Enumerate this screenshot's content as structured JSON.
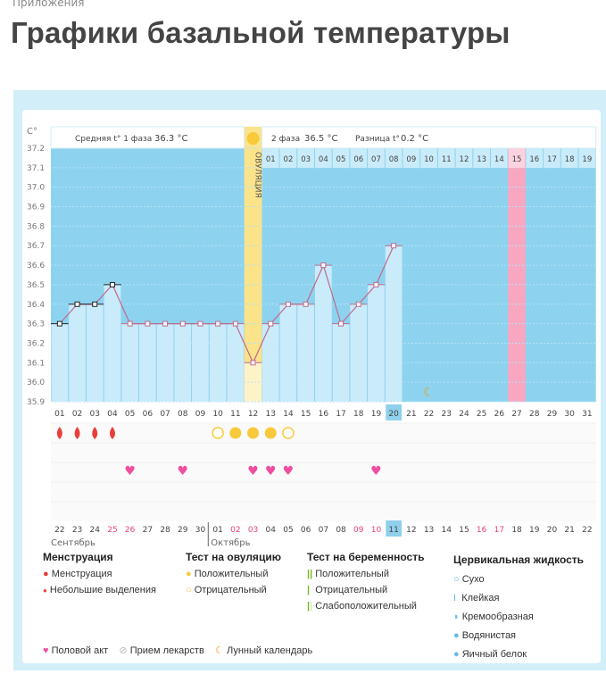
{
  "breadcrumb": "Приложения",
  "title": "Графики базальной температуры",
  "chart_data": {
    "type": "line",
    "ylabel": "C°",
    "ylim": [
      35.9,
      37.2
    ],
    "yticks": [
      "37.2",
      "37.1",
      "37.0",
      "36.9",
      "36.8",
      "36.7",
      "36.6",
      "36.5",
      "36.4",
      "36.3",
      "36.2",
      "36.1",
      "36.0",
      "35.9"
    ],
    "cycle_days": [
      "01",
      "02",
      "03",
      "04",
      "05",
      "06",
      "07",
      "08",
      "09",
      "10",
      "11",
      "12",
      "13",
      "14",
      "15",
      "16",
      "17",
      "18",
      "19",
      "20",
      "21",
      "22",
      "23",
      "24",
      "25",
      "26",
      "27",
      "28",
      "29",
      "30",
      "31"
    ],
    "temperatures": [
      36.3,
      36.4,
      36.4,
      36.5,
      36.3,
      36.3,
      36.3,
      36.3,
      36.3,
      36.3,
      36.3,
      36.1,
      36.3,
      36.4,
      36.4,
      36.6,
      36.3,
      36.4,
      36.5,
      36.7
    ],
    "today_day": 20,
    "ovulation_day": 12,
    "ovulation_label": "ОВУЛЯЦИЯ",
    "expected_period_day": 27,
    "moon_day": 22,
    "phase1_label": "Средняя t° 1 фаза",
    "phase1_value": "36.3 °C",
    "phase2_label": "2 фаза",
    "phase2_value": "36.5 °C",
    "diff_label": "Разница t°",
    "diff_value": "0.2 °C",
    "phase2_days": [
      "01",
      "02",
      "03",
      "04",
      "05",
      "06",
      "07",
      "08",
      "09",
      "10",
      "11",
      "12",
      "13",
      "14",
      "15",
      "16",
      "17",
      "18",
      "19"
    ],
    "phase2_highlight": "15",
    "menstruation_days": [
      1,
      2,
      3,
      4
    ],
    "ovulation_test": {
      "negative": [
        10,
        14
      ],
      "positive": [
        11,
        12,
        13
      ]
    },
    "intercourse_days": [
      5,
      8,
      12,
      13,
      14,
      19
    ],
    "calendar_dates": [
      "22",
      "23",
      "24",
      "25",
      "26",
      "27",
      "28",
      "29",
      "30",
      "01",
      "02",
      "03",
      "04",
      "05",
      "06",
      "07",
      "08",
      "09",
      "10",
      "11",
      "12",
      "13",
      "14",
      "15",
      "16",
      "17",
      "18",
      "19",
      "20",
      "21",
      "22"
    ],
    "weekend_dates_idx": [
      3,
      4,
      10,
      11,
      17,
      18,
      24,
      25
    ],
    "months": [
      "Сентябрь",
      "Октябрь"
    ],
    "colors": {
      "plot_bg": "#8dd3f0",
      "bar": "#c9ebfa",
      "line": "#c06a8c",
      "ovulation": "#fbe38a",
      "period": "#f7a8c0",
      "today": "#8fd0ec",
      "weekend": "#e8407a"
    }
  },
  "legend": {
    "menstruation": {
      "title": "Менструация",
      "items": [
        "Менструация",
        "Небольшие выделения"
      ]
    },
    "ovulation_test": {
      "title": "Тест на овуляцию",
      "items": [
        "Положительный",
        "Отрицательный"
      ]
    },
    "pregnancy_test": {
      "title": "Тест на беременность",
      "items": [
        "Положительный",
        "Отрицательный",
        "Слабоположительный"
      ]
    },
    "cervical": {
      "title": "Цервикальная жидкость",
      "items": [
        "Сухо",
        "Клейкая",
        "Кремообразная",
        "Водянистая",
        "Яичный белок"
      ]
    },
    "other": [
      "Половой акт",
      "Прием лекарств",
      "Лунный календарь"
    ]
  }
}
